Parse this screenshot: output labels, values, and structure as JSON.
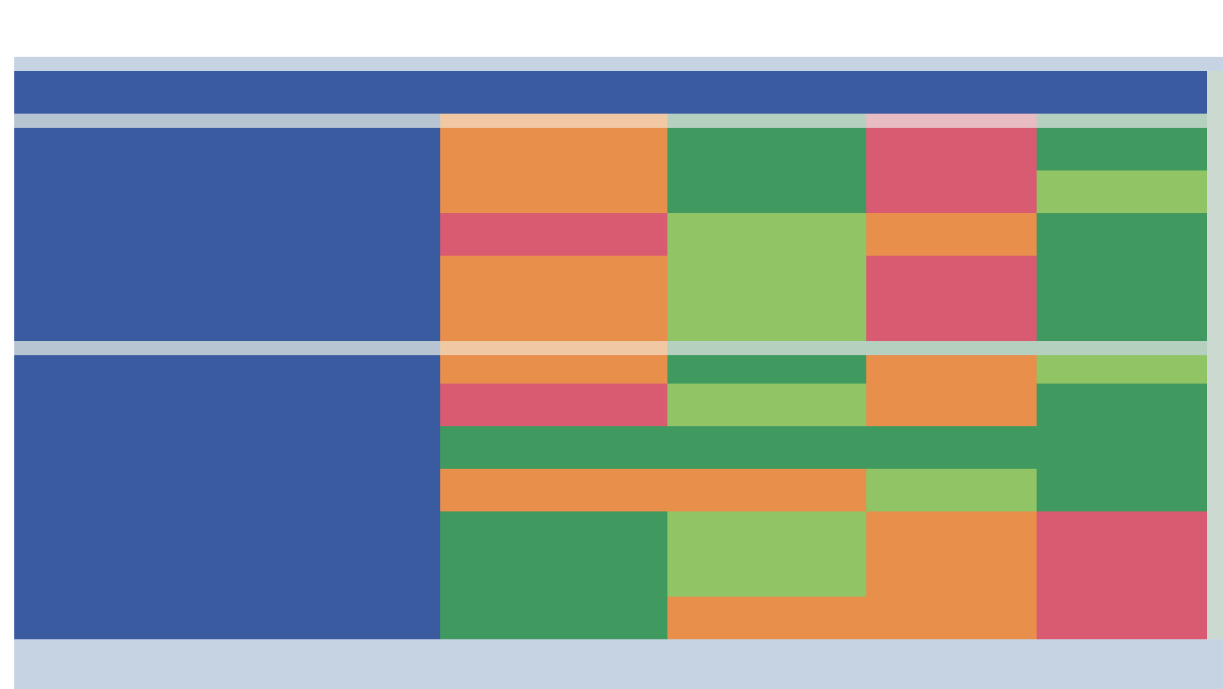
{
  "title": "",
  "colors": {
    "header_bg": "#3a5ba0",
    "orange": "#e88f4b",
    "dark_green": "#409a60",
    "light_green": "#91c464",
    "red": "#d85b72",
    "separator": "#b7c5d3"
  },
  "header": {
    "col0": "",
    "col1": "",
    "col2": "",
    "col3": "",
    "col4": ""
  },
  "rows": {
    "r1": "",
    "r2": "",
    "r3": "",
    "r4": "",
    "r5": "",
    "r6": "",
    "r7": "",
    "r8": "",
    "r9": "",
    "r10": "",
    "r11": ""
  },
  "cells": {
    "r8": [
      "",
      "",
      "",
      ""
    ],
    "r9": [
      "",
      "",
      "",
      ""
    ],
    "r10": [
      "",
      "",
      "",
      ""
    ],
    "r11": [
      "",
      "",
      "",
      ""
    ]
  }
}
